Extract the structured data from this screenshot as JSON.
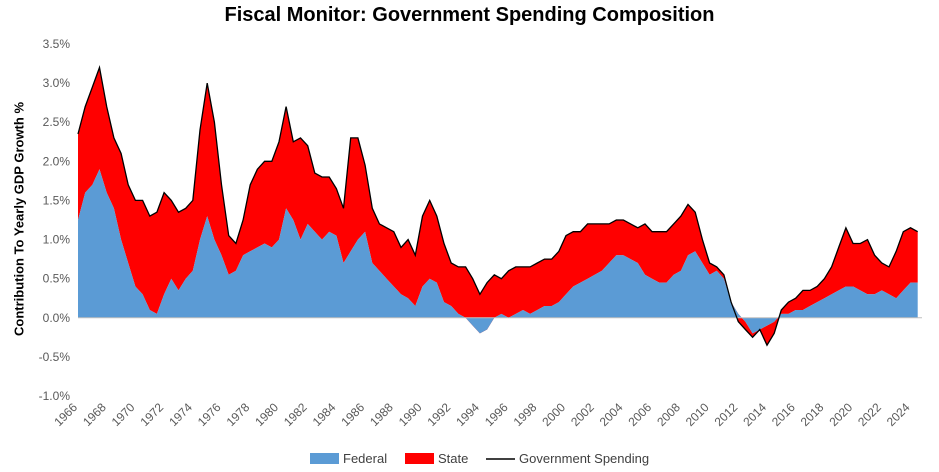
{
  "chart_data": {
    "type": "area",
    "title": "Fiscal Monitor: Government Spending Composition",
    "ylabel": "Contribution To Yearly GDP Growth %",
    "xlabel": "",
    "ylim": [
      -1.0,
      3.5
    ],
    "xlim": [
      1966,
      2024.8
    ],
    "yticks": [
      "-1.0%",
      "-0.5%",
      "0.0%",
      "0.5%",
      "1.0%",
      "1.5%",
      "2.0%",
      "2.5%",
      "3.0%",
      "3.5%"
    ],
    "xticks": [
      "1966",
      "1968",
      "1970",
      "1972",
      "1974",
      "1976",
      "1978",
      "1980",
      "1982",
      "1984",
      "1986",
      "1988",
      "1990",
      "1992",
      "1994",
      "1996",
      "1998",
      "2000",
      "2002",
      "2004",
      "2006",
      "2008",
      "2010",
      "2012",
      "2014",
      "2016",
      "2018",
      "2020",
      "2022",
      "2024"
    ],
    "grid": false,
    "legend": "bottom",
    "colors": {
      "federal": "#5b9bd5",
      "state": "#ff0000",
      "total": "#000000"
    },
    "series": [
      {
        "name": "Federal",
        "kind": "stacked-area",
        "x": [
          1966.0,
          1966.5,
          1967.0,
          1967.5,
          1968.0,
          1968.5,
          1969.0,
          1969.5,
          1970.0,
          1970.5,
          1971.0,
          1971.5,
          1972.0,
          1972.5,
          1973.0,
          1973.5,
          1974.0,
          1974.5,
          1975.0,
          1975.5,
          1976.0,
          1976.5,
          1977.0,
          1977.5,
          1978.0,
          1978.5,
          1979.0,
          1979.5,
          1980.0,
          1980.5,
          1981.0,
          1981.5,
          1982.0,
          1982.5,
          1983.0,
          1983.5,
          1984.0,
          1984.5,
          1985.0,
          1985.5,
          1986.0,
          1986.5,
          1987.0,
          1987.5,
          1988.0,
          1988.5,
          1989.0,
          1989.5,
          1990.0,
          1990.5,
          1991.0,
          1991.5,
          1992.0,
          1992.5,
          1993.0,
          1993.5,
          1994.0,
          1994.5,
          1995.0,
          1995.5,
          1996.0,
          1996.5,
          1997.0,
          1997.5,
          1998.0,
          1998.5,
          1999.0,
          1999.5,
          2000.0,
          2000.5,
          2001.0,
          2001.5,
          2002.0,
          2002.5,
          2003.0,
          2003.5,
          2004.0,
          2004.5,
          2005.0,
          2005.5,
          2006.0,
          2006.5,
          2007.0,
          2007.5,
          2008.0,
          2008.5,
          2009.0,
          2009.5,
          2010.0,
          2010.5,
          2011.0,
          2011.5,
          2012.0,
          2012.5,
          2013.0,
          2013.5,
          2014.0,
          2014.5,
          2015.0,
          2015.5,
          2016.0,
          2016.5,
          2017.0,
          2017.5,
          2018.0,
          2018.5,
          2019.0,
          2019.5,
          2020.0,
          2020.5,
          2021.0,
          2021.5,
          2022.0,
          2022.5,
          2023.0,
          2023.5,
          2024.0,
          2024.5
        ],
        "y": [
          1.25,
          1.6,
          1.7,
          1.9,
          1.6,
          1.4,
          1.0,
          0.7,
          0.4,
          0.3,
          0.1,
          0.05,
          0.3,
          0.5,
          0.35,
          0.5,
          0.6,
          1.0,
          1.3,
          1.0,
          0.8,
          0.55,
          0.6,
          0.8,
          0.85,
          0.9,
          0.95,
          0.9,
          1.0,
          1.4,
          1.25,
          1.0,
          1.2,
          1.1,
          1.0,
          1.1,
          1.05,
          0.7,
          0.85,
          1.0,
          1.1,
          0.7,
          0.6,
          0.5,
          0.4,
          0.3,
          0.25,
          0.15,
          0.4,
          0.5,
          0.45,
          0.2,
          0.15,
          0.05,
          0.0,
          -0.1,
          -0.2,
          -0.15,
          0.0,
          0.05,
          0.0,
          0.05,
          0.1,
          0.05,
          0.1,
          0.15,
          0.15,
          0.2,
          0.3,
          0.4,
          0.45,
          0.5,
          0.55,
          0.6,
          0.7,
          0.8,
          0.8,
          0.75,
          0.7,
          0.55,
          0.5,
          0.45,
          0.45,
          0.55,
          0.6,
          0.8,
          0.85,
          0.7,
          0.55,
          0.6,
          0.5,
          0.2,
          0.05,
          -0.05,
          -0.2,
          -0.15,
          -0.1,
          -0.05,
          0.05,
          0.05,
          0.1,
          0.1,
          0.15,
          0.2,
          0.25,
          0.3,
          0.35,
          0.4,
          0.4,
          0.35,
          0.3,
          0.3,
          0.35,
          0.3,
          0.25,
          0.35,
          0.45,
          0.45
        ]
      },
      {
        "name": "State",
        "kind": "stacked-area",
        "x": [
          1966.0,
          1966.5,
          1967.0,
          1967.5,
          1968.0,
          1968.5,
          1969.0,
          1969.5,
          1970.0,
          1970.5,
          1971.0,
          1971.5,
          1972.0,
          1972.5,
          1973.0,
          1973.5,
          1974.0,
          1974.5,
          1975.0,
          1975.5,
          1976.0,
          1976.5,
          1977.0,
          1977.5,
          1978.0,
          1978.5,
          1979.0,
          1979.5,
          1980.0,
          1980.5,
          1981.0,
          1981.5,
          1982.0,
          1982.5,
          1983.0,
          1983.5,
          1984.0,
          1984.5,
          1985.0,
          1985.5,
          1986.0,
          1986.5,
          1987.0,
          1987.5,
          1988.0,
          1988.5,
          1989.0,
          1989.5,
          1990.0,
          1990.5,
          1991.0,
          1991.5,
          1992.0,
          1992.5,
          1993.0,
          1993.5,
          1994.0,
          1994.5,
          1995.0,
          1995.5,
          1996.0,
          1996.5,
          1997.0,
          1997.5,
          1998.0,
          1998.5,
          1999.0,
          1999.5,
          2000.0,
          2000.5,
          2001.0,
          2001.5,
          2002.0,
          2002.5,
          2003.0,
          2003.5,
          2004.0,
          2004.5,
          2005.0,
          2005.5,
          2006.0,
          2006.5,
          2007.0,
          2007.5,
          2008.0,
          2008.5,
          2009.0,
          2009.5,
          2010.0,
          2010.5,
          2011.0,
          2011.5,
          2012.0,
          2012.5,
          2013.0,
          2013.5,
          2014.0,
          2014.5,
          2015.0,
          2015.5,
          2016.0,
          2016.5,
          2017.0,
          2017.5,
          2018.0,
          2018.5,
          2019.0,
          2019.5,
          2020.0,
          2020.5,
          2021.0,
          2021.5,
          2022.0,
          2022.5,
          2023.0,
          2023.5,
          2024.0,
          2024.5
        ],
        "y": [
          1.1,
          1.1,
          1.25,
          1.3,
          1.1,
          0.9,
          1.1,
          1.0,
          1.1,
          1.2,
          1.2,
          1.3,
          1.3,
          1.0,
          1.0,
          0.9,
          0.9,
          1.4,
          1.7,
          1.5,
          0.9,
          0.5,
          0.35,
          0.45,
          0.85,
          1.0,
          1.05,
          1.1,
          1.25,
          1.3,
          1.0,
          1.3,
          1.0,
          0.75,
          0.8,
          0.7,
          0.6,
          0.7,
          1.45,
          1.3,
          0.85,
          0.7,
          0.6,
          0.65,
          0.7,
          0.6,
          0.75,
          0.65,
          0.9,
          1.0,
          0.85,
          0.75,
          0.55,
          0.6,
          0.65,
          0.6,
          0.5,
          0.6,
          0.55,
          0.45,
          0.6,
          0.6,
          0.55,
          0.6,
          0.6,
          0.6,
          0.6,
          0.65,
          0.75,
          0.7,
          0.65,
          0.7,
          0.65,
          0.6,
          0.5,
          0.45,
          0.45,
          0.45,
          0.45,
          0.65,
          0.6,
          0.65,
          0.65,
          0.65,
          0.7,
          0.65,
          0.5,
          0.3,
          0.15,
          0.05,
          0.05,
          0.0,
          -0.1,
          -0.1,
          -0.05,
          0.0,
          -0.25,
          -0.15,
          0.05,
          0.15,
          0.15,
          0.25,
          0.2,
          0.2,
          0.25,
          0.35,
          0.55,
          0.75,
          0.55,
          0.6,
          0.7,
          0.5,
          0.35,
          0.35,
          0.6,
          0.75,
          0.7,
          0.65
        ]
      },
      {
        "name": "Government Spending",
        "kind": "line",
        "x": [
          1966.0,
          1966.5,
          1967.0,
          1967.5,
          1968.0,
          1968.5,
          1969.0,
          1969.5,
          1970.0,
          1970.5,
          1971.0,
          1971.5,
          1972.0,
          1972.5,
          1973.0,
          1973.5,
          1974.0,
          1974.5,
          1975.0,
          1975.5,
          1976.0,
          1976.5,
          1977.0,
          1977.5,
          1978.0,
          1978.5,
          1979.0,
          1979.5,
          1980.0,
          1980.5,
          1981.0,
          1981.5,
          1982.0,
          1982.5,
          1983.0,
          1983.5,
          1984.0,
          1984.5,
          1985.0,
          1985.5,
          1986.0,
          1986.5,
          1987.0,
          1987.5,
          1988.0,
          1988.5,
          1989.0,
          1989.5,
          1990.0,
          1990.5,
          1991.0,
          1991.5,
          1992.0,
          1992.5,
          1993.0,
          1993.5,
          1994.0,
          1994.5,
          1995.0,
          1995.5,
          1996.0,
          1996.5,
          1997.0,
          1997.5,
          1998.0,
          1998.5,
          1999.0,
          1999.5,
          2000.0,
          2000.5,
          2001.0,
          2001.5,
          2002.0,
          2002.5,
          2003.0,
          2003.5,
          2004.0,
          2004.5,
          2005.0,
          2005.5,
          2006.0,
          2006.5,
          2007.0,
          2007.5,
          2008.0,
          2008.5,
          2009.0,
          2009.5,
          2010.0,
          2010.5,
          2011.0,
          2011.5,
          2012.0,
          2012.5,
          2013.0,
          2013.5,
          2014.0,
          2014.5,
          2015.0,
          2015.5,
          2016.0,
          2016.5,
          2017.0,
          2017.5,
          2018.0,
          2018.5,
          2019.0,
          2019.5,
          2020.0,
          2020.5,
          2021.0,
          2021.5,
          2022.0,
          2022.5,
          2023.0,
          2023.5,
          2024.0,
          2024.5
        ],
        "y": [
          2.35,
          2.7,
          2.95,
          3.2,
          2.7,
          2.3,
          2.1,
          1.7,
          1.5,
          1.5,
          1.3,
          1.35,
          1.6,
          1.5,
          1.35,
          1.4,
          1.5,
          2.4,
          3.0,
          2.5,
          1.7,
          1.05,
          0.95,
          1.25,
          1.7,
          1.9,
          2.0,
          2.0,
          2.25,
          2.7,
          2.25,
          2.3,
          2.2,
          1.85,
          1.8,
          1.8,
          1.65,
          1.4,
          2.3,
          2.3,
          1.95,
          1.4,
          1.2,
          1.15,
          1.1,
          0.9,
          1.0,
          0.8,
          1.3,
          1.5,
          1.3,
          0.95,
          0.7,
          0.65,
          0.65,
          0.5,
          0.3,
          0.45,
          0.55,
          0.5,
          0.6,
          0.65,
          0.65,
          0.65,
          0.7,
          0.75,
          0.75,
          0.85,
          1.05,
          1.1,
          1.1,
          1.2,
          1.2,
          1.2,
          1.2,
          1.25,
          1.25,
          1.2,
          1.15,
          1.2,
          1.1,
          1.1,
          1.1,
          1.2,
          1.3,
          1.45,
          1.35,
          1.0,
          0.7,
          0.65,
          0.55,
          0.2,
          -0.05,
          -0.15,
          -0.25,
          -0.15,
          -0.35,
          -0.2,
          0.1,
          0.2,
          0.25,
          0.35,
          0.35,
          0.4,
          0.5,
          0.65,
          0.9,
          1.15,
          0.95,
          0.95,
          1.0,
          0.8,
          0.7,
          0.65,
          0.85,
          1.1,
          1.15,
          1.1
        ]
      }
    ]
  }
}
